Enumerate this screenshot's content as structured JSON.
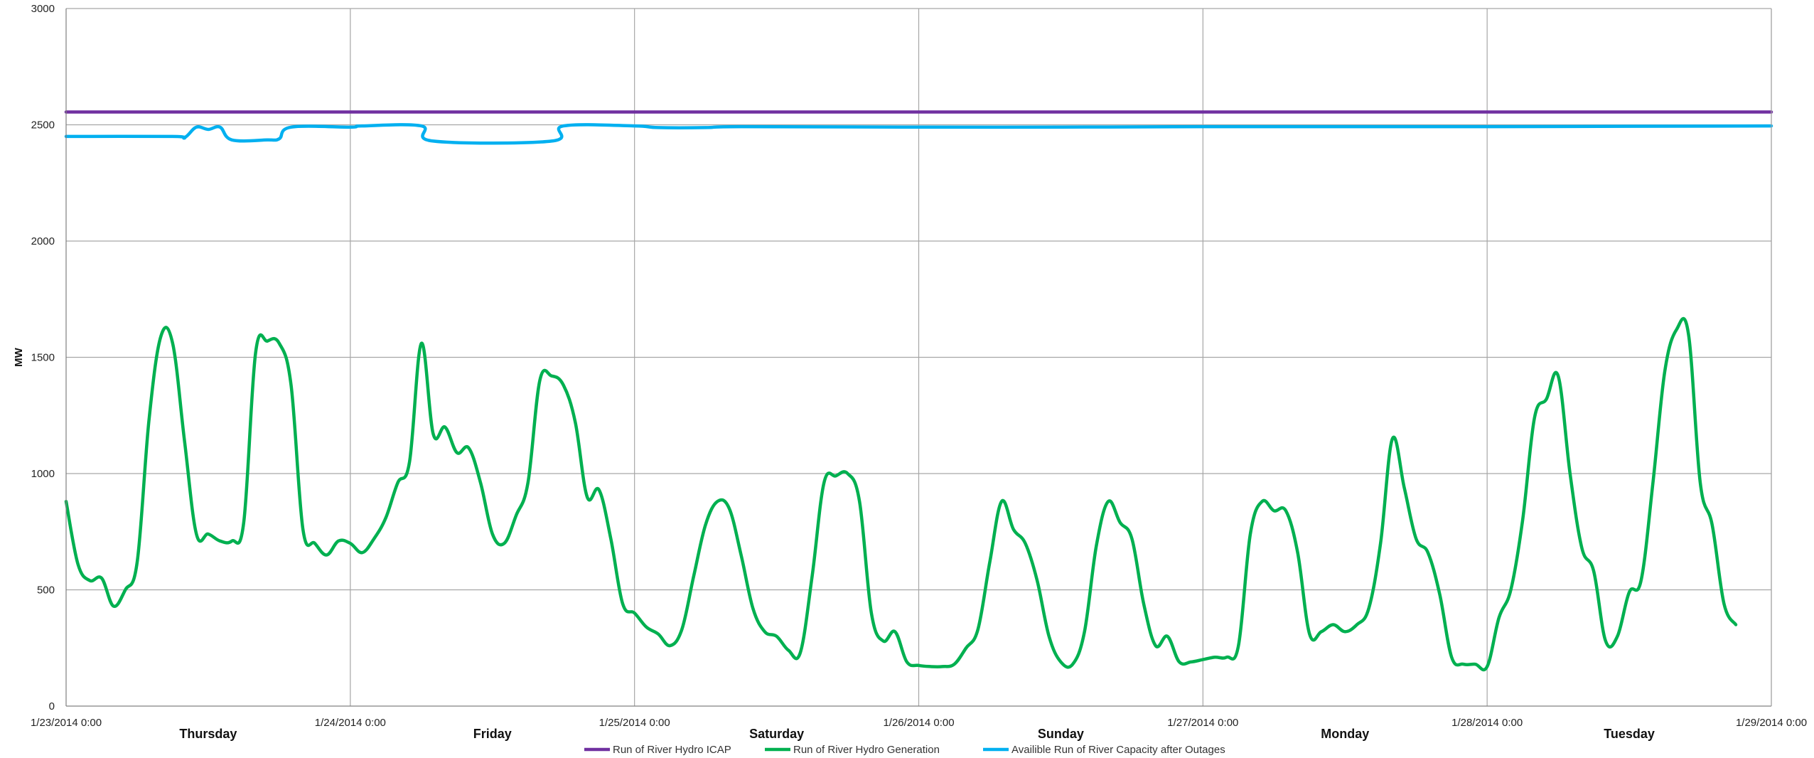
{
  "chart_data": {
    "type": "line",
    "ylabel": "MW",
    "ylim": [
      0,
      3000
    ],
    "yticks": [
      0,
      500,
      1000,
      1500,
      2000,
      2500,
      3000
    ],
    "xlim": [
      "1/23/2014 0:00",
      "1/29/2014 0:00"
    ],
    "date_tick_labels": [
      "1/23/2014 0:00",
      "1/24/2014 0:00",
      "1/25/2014 0:00",
      "1/26/2014 0:00",
      "1/27/2014 0:00",
      "1/28/2014 0:00",
      "1/29/2014 0:00"
    ],
    "day_labels": [
      "Thursday",
      "Friday",
      "Saturday",
      "Sunday",
      "Monday",
      "Tuesday"
    ],
    "grid": true,
    "legend_position": "bottom",
    "series": [
      {
        "name": "Run of River Hydro ICAP",
        "color": "#7030a0",
        "points": [
          [
            "1/23/2014 0:00",
            2555
          ],
          [
            "1/29/2014 0:00",
            2555
          ]
        ]
      },
      {
        "name": "Run of River Hydro Generation",
        "color": "#00b050",
        "points": [
          [
            "1/23/2014 0:00",
            880
          ],
          [
            "1/23/2014 1:00",
            610
          ],
          [
            "1/23/2014 2:00",
            540
          ],
          [
            "1/23/2014 3:00",
            550
          ],
          [
            "1/23/2014 4:00",
            430
          ],
          [
            "1/23/2014 5:00",
            500
          ],
          [
            "1/23/2014 6:00",
            620
          ],
          [
            "1/23/2014 7:00",
            1230
          ],
          [
            "1/23/2014 8:00",
            1590
          ],
          [
            "1/23/2014 9:00",
            1560
          ],
          [
            "1/23/2014 10:00",
            1140
          ],
          [
            "1/23/2014 11:00",
            740
          ],
          [
            "1/23/2014 12:00",
            740
          ],
          [
            "1/23/2014 13:00",
            710
          ],
          [
            "1/23/2014 14:00",
            710
          ],
          [
            "1/23/2014 15:00",
            790
          ],
          [
            "1/23/2014 16:00",
            1520
          ],
          [
            "1/23/2014 17:00",
            1570
          ],
          [
            "1/23/2014 18:00",
            1560
          ],
          [
            "1/23/2014 19:00",
            1380
          ],
          [
            "1/23/2014 20:00",
            760
          ],
          [
            "1/23/2014 21:00",
            700
          ],
          [
            "1/23/2014 22:00",
            650
          ],
          [
            "1/23/2014 23:00",
            710
          ],
          [
            "1/24/2014 0:00",
            700
          ],
          [
            "1/24/2014 1:00",
            660
          ],
          [
            "1/24/2014 2:00",
            720
          ],
          [
            "1/24/2014 3:00",
            810
          ],
          [
            "1/24/2014 4:00",
            960
          ],
          [
            "1/24/2014 5:00",
            1050
          ],
          [
            "1/24/2014 6:00",
            1560
          ],
          [
            "1/24/2014 7:00",
            1170
          ],
          [
            "1/24/2014 8:00",
            1200
          ],
          [
            "1/24/2014 9:00",
            1090
          ],
          [
            "1/24/2014 10:00",
            1110
          ],
          [
            "1/24/2014 11:00",
            960
          ],
          [
            "1/24/2014 12:00",
            740
          ],
          [
            "1/24/2014 13:00",
            700
          ],
          [
            "1/24/2014 14:00",
            820
          ],
          [
            "1/24/2014 15:00",
            960
          ],
          [
            "1/24/2014 16:00",
            1400
          ],
          [
            "1/24/2014 17:00",
            1420
          ],
          [
            "1/24/2014 18:00",
            1380
          ],
          [
            "1/24/2014 19:00",
            1220
          ],
          [
            "1/24/2014 20:00",
            900
          ],
          [
            "1/24/2014 21:00",
            930
          ],
          [
            "1/24/2014 22:00",
            720
          ],
          [
            "1/24/2014 23:00",
            440
          ],
          [
            "1/25/2014 0:00",
            400
          ],
          [
            "1/25/2014 1:00",
            340
          ],
          [
            "1/25/2014 2:00",
            310
          ],
          [
            "1/25/2014 3:00",
            260
          ],
          [
            "1/25/2014 4:00",
            330
          ],
          [
            "1/25/2014 5:00",
            560
          ],
          [
            "1/25/2014 6:00",
            780
          ],
          [
            "1/25/2014 7:00",
            880
          ],
          [
            "1/25/2014 8:00",
            850
          ],
          [
            "1/25/2014 9:00",
            650
          ],
          [
            "1/25/2014 10:00",
            420
          ],
          [
            "1/25/2014 11:00",
            320
          ],
          [
            "1/25/2014 12:00",
            300
          ],
          [
            "1/25/2014 13:00",
            240
          ],
          [
            "1/25/2014 14:00",
            230
          ],
          [
            "1/25/2014 15:00",
            560
          ],
          [
            "1/25/2014 16:00",
            960
          ],
          [
            "1/25/2014 17:00",
            990
          ],
          [
            "1/25/2014 18:00",
            1000
          ],
          [
            "1/25/2014 19:00",
            880
          ],
          [
            "1/25/2014 20:00",
            400
          ],
          [
            "1/25/2014 21:00",
            280
          ],
          [
            "1/25/2014 22:00",
            320
          ],
          [
            "1/25/2014 23:00",
            190
          ],
          [
            "1/26/2014 0:00",
            175
          ],
          [
            "1/26/2014 1:00",
            170
          ],
          [
            "1/26/2014 2:00",
            170
          ],
          [
            "1/26/2014 3:00",
            180
          ],
          [
            "1/26/2014 4:00",
            250
          ],
          [
            "1/26/2014 5:00",
            330
          ],
          [
            "1/26/2014 6:00",
            620
          ],
          [
            "1/26/2014 7:00",
            880
          ],
          [
            "1/26/2014 8:00",
            760
          ],
          [
            "1/26/2014 9:00",
            700
          ],
          [
            "1/26/2014 10:00",
            540
          ],
          [
            "1/26/2014 11:00",
            300
          ],
          [
            "1/26/2014 12:00",
            190
          ],
          [
            "1/26/2014 13:00",
            180
          ],
          [
            "1/26/2014 14:00",
            320
          ],
          [
            "1/26/2014 15:00",
            690
          ],
          [
            "1/26/2014 16:00",
            880
          ],
          [
            "1/26/2014 17:00",
            790
          ],
          [
            "1/26/2014 18:00",
            720
          ],
          [
            "1/26/2014 19:00",
            440
          ],
          [
            "1/26/2014 20:00",
            260
          ],
          [
            "1/26/2014 21:00",
            300
          ],
          [
            "1/26/2014 22:00",
            190
          ],
          [
            "1/26/2014 23:00",
            190
          ],
          [
            "1/27/2014 0:00",
            200
          ],
          [
            "1/27/2014 1:00",
            210
          ],
          [
            "1/27/2014 2:00",
            210
          ],
          [
            "1/27/2014 3:00",
            260
          ],
          [
            "1/27/2014 4:00",
            740
          ],
          [
            "1/27/2014 5:00",
            880
          ],
          [
            "1/27/2014 6:00",
            840
          ],
          [
            "1/27/2014 7:00",
            840
          ],
          [
            "1/27/2014 8:00",
            660
          ],
          [
            "1/27/2014 9:00",
            310
          ],
          [
            "1/27/2014 10:00",
            320
          ],
          [
            "1/27/2014 11:00",
            350
          ],
          [
            "1/27/2014 12:00",
            320
          ],
          [
            "1/27/2014 13:00",
            350
          ],
          [
            "1/27/2014 14:00",
            420
          ],
          [
            "1/27/2014 15:00",
            700
          ],
          [
            "1/27/2014 16:00",
            1150
          ],
          [
            "1/27/2014 17:00",
            940
          ],
          [
            "1/27/2014 18:00",
            720
          ],
          [
            "1/27/2014 19:00",
            660
          ],
          [
            "1/27/2014 20:00",
            480
          ],
          [
            "1/27/2014 21:00",
            210
          ],
          [
            "1/27/2014 22:00",
            180
          ],
          [
            "1/27/2014 23:00",
            180
          ],
          [
            "1/28/2014 0:00",
            170
          ],
          [
            "1/28/2014 1:00",
            380
          ],
          [
            "1/28/2014 2:00",
            500
          ],
          [
            "1/28/2014 3:00",
            800
          ],
          [
            "1/28/2014 4:00",
            1240
          ],
          [
            "1/28/2014 5:00",
            1320
          ],
          [
            "1/28/2014 6:00",
            1420
          ],
          [
            "1/28/2014 7:00",
            1000
          ],
          [
            "1/28/2014 8:00",
            680
          ],
          [
            "1/28/2014 9:00",
            580
          ],
          [
            "1/28/2014 10:00",
            280
          ],
          [
            "1/28/2014 11:00",
            300
          ],
          [
            "1/28/2014 12:00",
            490
          ],
          [
            "1/28/2014 13:00",
            540
          ],
          [
            "1/28/2014 14:00",
            960
          ],
          [
            "1/28/2014 15:00",
            1440
          ],
          [
            "1/28/2014 16:00",
            1620
          ],
          [
            "1/28/2014 17:00",
            1600
          ],
          [
            "1/28/2014 18:00",
            960
          ],
          [
            "1/28/2014 19:00",
            780
          ],
          [
            "1/28/2014 20:00",
            440
          ],
          [
            "1/28/2014 21:00",
            350
          ]
        ]
      },
      {
        "name": "Availible Run of River Capacity after Outages",
        "color": "#00b0f0",
        "points": [
          [
            "1/23/2014 0:00",
            2450
          ],
          [
            "1/23/2014 9:00",
            2450
          ],
          [
            "1/23/2014 10:00",
            2445
          ],
          [
            "1/23/2014 11:00",
            2490
          ],
          [
            "1/23/2014 12:00",
            2480
          ],
          [
            "1/23/2014 13:00",
            2490
          ],
          [
            "1/23/2014 14:00",
            2435
          ],
          [
            "1/23/2014 17:00",
            2435
          ],
          [
            "1/23/2014 18:00",
            2440
          ],
          [
            "1/23/2014 19:00",
            2490
          ],
          [
            "1/24/2014 0:00",
            2490
          ],
          [
            "1/24/2014 1:00",
            2495
          ],
          [
            "1/24/2014 6:00",
            2495
          ],
          [
            "1/24/2014 7:00",
            2430
          ],
          [
            "1/24/2014 17:00",
            2430
          ],
          [
            "1/24/2014 18:00",
            2495
          ],
          [
            "1/25/2014 0:00",
            2495
          ],
          [
            "1/25/2014 2:00",
            2488
          ],
          [
            "1/25/2014 6:00",
            2488
          ],
          [
            "1/25/2014 9:00",
            2492
          ],
          [
            "1/26/2014 0:00",
            2490
          ],
          [
            "1/26/2014 12:00",
            2490
          ],
          [
            "1/27/2014 0:00",
            2492
          ],
          [
            "1/28/2014 0:00",
            2492
          ],
          [
            "1/29/2014 0:00",
            2495
          ]
        ]
      }
    ]
  }
}
